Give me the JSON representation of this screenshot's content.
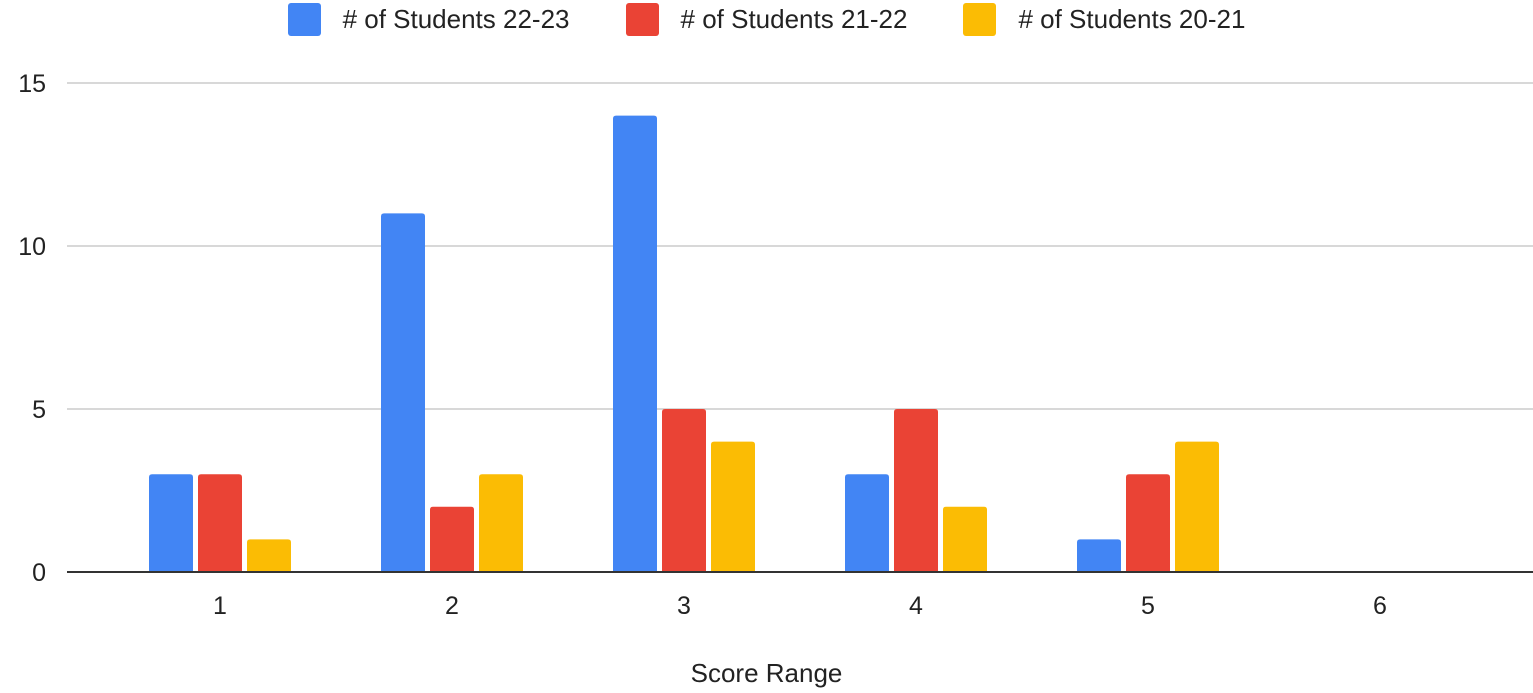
{
  "chart_data": {
    "type": "bar",
    "categories": [
      "1",
      "2",
      "3",
      "4",
      "5",
      "6"
    ],
    "series": [
      {
        "name": "# of Students 22-23",
        "color": "#4285F4",
        "values": [
          3,
          11,
          14,
          3,
          1,
          0
        ]
      },
      {
        "name": "# of Students 21-22",
        "color": "#EA4335",
        "values": [
          3,
          2,
          5,
          5,
          3,
          0
        ]
      },
      {
        "name": "# of Students 20-21",
        "color": "#FBBC04",
        "values": [
          1,
          3,
          4,
          2,
          4,
          0
        ]
      }
    ],
    "title": "",
    "xlabel": "Score Range",
    "ylabel": "",
    "ylim": [
      0,
      15
    ],
    "yticks": [
      "0",
      "5",
      "10",
      "15"
    ],
    "grid": true,
    "legend": "top"
  }
}
